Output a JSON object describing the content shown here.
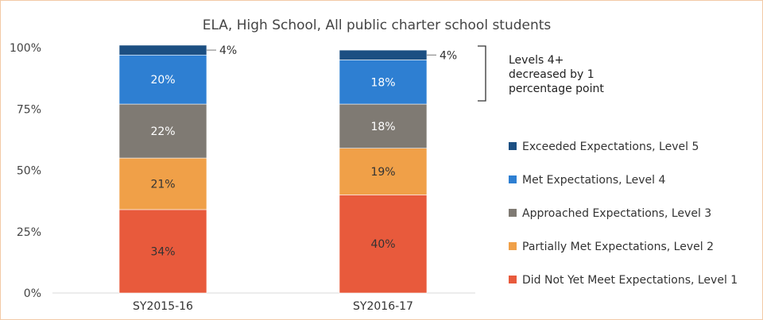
{
  "chart_data": {
    "type": "bar",
    "stacked": true,
    "title": "ELA, High School, All public charter school students",
    "categories": [
      "SY2015-16",
      "SY2016-17"
    ],
    "y_ticks": [
      "0%",
      "25%",
      "50%",
      "75%",
      "100%"
    ],
    "ylim": [
      0,
      100
    ],
    "series": [
      {
        "name": "Did Not Yet Meet Expectations, Level 1",
        "color": "#e85a3c",
        "values": [
          34,
          40
        ],
        "labels": [
          "34%",
          "40%"
        ],
        "label_color": "dark"
      },
      {
        "name": "Partially Met Expectations, Level 2",
        "color": "#f0a048",
        "values": [
          21,
          19
        ],
        "labels": [
          "21%",
          "19%"
        ],
        "label_color": "dark"
      },
      {
        "name": "Approached Expectations, Level 3",
        "color": "#7f7a73",
        "values": [
          22,
          18
        ],
        "labels": [
          "22%",
          "18%"
        ],
        "label_color": "light"
      },
      {
        "name": "Met Expectations, Level 4",
        "color": "#2e7fd2",
        "values": [
          20,
          18
        ],
        "labels": [
          "20%",
          "18%"
        ],
        "label_color": "light"
      },
      {
        "name": "Exceeded Expectations, Level 5",
        "color": "#1c4f82",
        "values": [
          4,
          4
        ],
        "labels": [
          "4%",
          "4%"
        ],
        "label_color": "outside"
      }
    ],
    "legend_position": "right",
    "grid": false
  },
  "annotation": {
    "lines": [
      "Levels 4+",
      "decreased by 1",
      "percentage point"
    ]
  }
}
